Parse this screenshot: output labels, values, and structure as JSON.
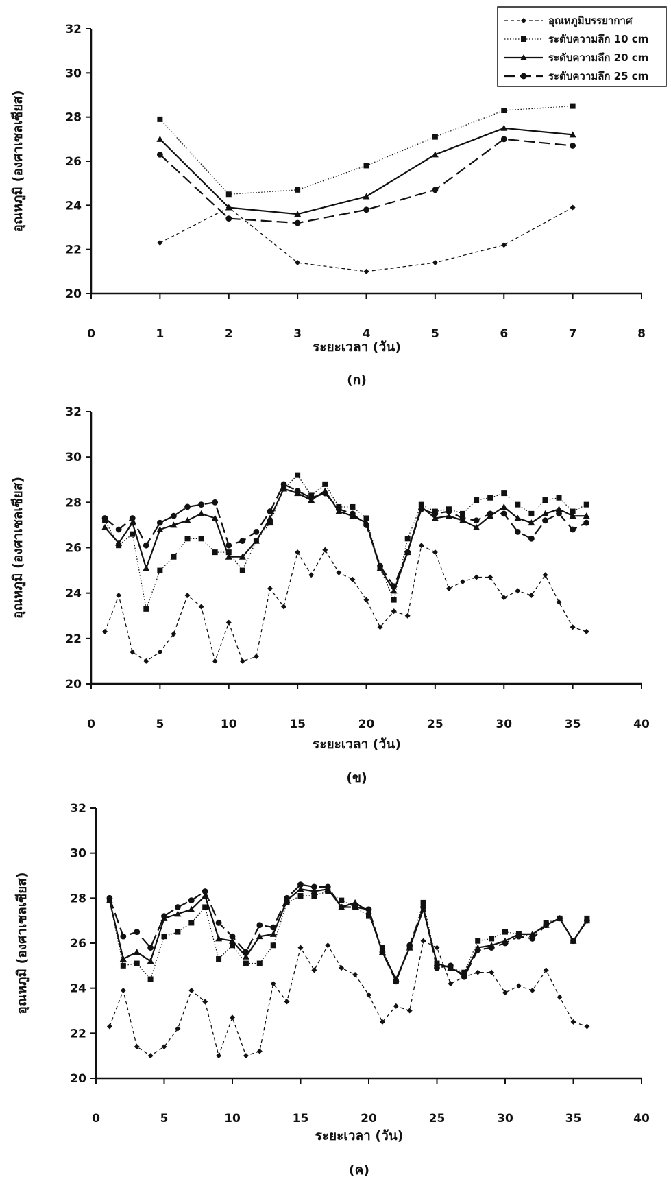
{
  "chart_data": [
    {
      "type": "line",
      "caption": "(ก)",
      "xlabel": "ระยะเวลา (วัน)",
      "ylabel": "อุณหภูมิ (องศาเซลเซียส)",
      "xlim": [
        0,
        8
      ],
      "ylim": [
        20,
        32
      ],
      "xticks": [
        0,
        1,
        2,
        3,
        4,
        5,
        6,
        7,
        8
      ],
      "yticks": [
        20,
        22,
        24,
        26,
        28,
        30,
        32
      ],
      "legend": "top-right",
      "x": [
        1,
        2,
        3,
        4,
        5,
        6,
        7
      ],
      "series": [
        {
          "name": "อุณหภูมิบรรยากาศ",
          "style": "dash-diamond",
          "values": [
            22.3,
            23.9,
            21.4,
            21.0,
            21.4,
            22.2,
            23.9
          ]
        },
        {
          "name": "ระดับความลึก 10 cm",
          "style": "dot-square",
          "values": [
            27.9,
            24.5,
            24.7,
            25.8,
            27.1,
            28.3,
            28.5
          ]
        },
        {
          "name": "ระดับความลึก 20 cm",
          "style": "solid-triangle",
          "values": [
            27.0,
            23.9,
            23.6,
            24.4,
            26.3,
            27.5,
            27.2
          ]
        },
        {
          "name": "ระดับความลึก 25 cm",
          "style": "longdash-circle",
          "values": [
            26.3,
            23.4,
            23.2,
            23.8,
            24.7,
            27.0,
            26.7
          ]
        }
      ]
    },
    {
      "type": "line",
      "caption": "(ข)",
      "xlabel": "ระยะเวลา (วัน)",
      "ylabel": "อุณหภูมิ (องศาเซลเซียส)",
      "xlim": [
        0,
        40
      ],
      "ylim": [
        20,
        32
      ],
      "xticks": [
        0,
        5,
        10,
        15,
        20,
        25,
        30,
        35,
        40
      ],
      "yticks": [
        20,
        22,
        24,
        26,
        28,
        30,
        32
      ],
      "x": [
        1,
        2,
        3,
        4,
        5,
        6,
        7,
        8,
        9,
        10,
        11,
        12,
        13,
        14,
        15,
        16,
        17,
        18,
        19,
        20,
        21,
        22,
        23,
        24,
        25,
        26,
        27,
        28,
        29,
        30,
        31,
        32,
        33,
        34,
        35,
        36
      ],
      "series": [
        {
          "style": "dash-diamond",
          "values": [
            22.3,
            23.9,
            21.4,
            21.0,
            21.4,
            22.2,
            23.9,
            23.4,
            21.0,
            22.7,
            21.0,
            21.2,
            24.2,
            23.4,
            25.8,
            24.8,
            25.9,
            24.9,
            24.6,
            23.7,
            22.5,
            23.2,
            23.0,
            26.1,
            25.8,
            24.2,
            24.5,
            24.7,
            24.7,
            23.8,
            24.1,
            23.9,
            24.8,
            23.6,
            22.5,
            22.3
          ]
        },
        {
          "style": "dot-square",
          "values": [
            27.2,
            26.1,
            26.6,
            23.3,
            25.0,
            25.6,
            26.4,
            26.4,
            25.8,
            25.8,
            25.0,
            26.3,
            27.1,
            28.6,
            29.2,
            28.3,
            28.8,
            27.8,
            27.8,
            27.3,
            25.1,
            23.7,
            26.4,
            27.9,
            27.6,
            27.7,
            27.5,
            28.1,
            28.2,
            28.4,
            27.9,
            27.5,
            28.1,
            28.2,
            27.6,
            27.9
          ]
        },
        {
          "style": "solid-triangle",
          "values": [
            26.9,
            26.2,
            27.1,
            25.1,
            26.8,
            27.0,
            27.2,
            27.5,
            27.3,
            25.6,
            25.6,
            26.3,
            27.3,
            28.6,
            28.4,
            28.1,
            28.5,
            27.6,
            27.4,
            27.1,
            25.1,
            24.1,
            25.8,
            27.8,
            27.3,
            27.4,
            27.2,
            26.9,
            27.4,
            27.8,
            27.3,
            27.1,
            27.5,
            27.7,
            27.4,
            27.4
          ]
        },
        {
          "style": "longdash-circle",
          "values": [
            27.3,
            26.8,
            27.3,
            26.1,
            27.1,
            27.4,
            27.8,
            27.9,
            28.0,
            26.1,
            26.3,
            26.7,
            27.6,
            28.8,
            28.5,
            28.2,
            28.4,
            27.7,
            27.5,
            27.0,
            25.2,
            24.3,
            25.8,
            27.7,
            27.5,
            27.6,
            27.3,
            27.2,
            27.5,
            27.5,
            26.7,
            26.4,
            27.2,
            27.5,
            26.8,
            27.1
          ]
        }
      ]
    },
    {
      "type": "line",
      "caption": "(ค)",
      "xlabel": "ระยะเวลา (วัน)",
      "ylabel": "อุณหภูมิ (องศาเซลเซียส)",
      "xlim": [
        0,
        40
      ],
      "ylim": [
        20,
        32
      ],
      "xticks": [
        0,
        5,
        10,
        15,
        20,
        25,
        30,
        35,
        40
      ],
      "yticks": [
        20,
        22,
        24,
        26,
        28,
        30,
        32
      ],
      "x": [
        1,
        2,
        3,
        4,
        5,
        6,
        7,
        8,
        9,
        10,
        11,
        12,
        13,
        14,
        15,
        16,
        17,
        18,
        19,
        20,
        21,
        22,
        23,
        24,
        25,
        26,
        27,
        28,
        29,
        30,
        31,
        32,
        33,
        34,
        35,
        36
      ],
      "series": [
        {
          "style": "dash-diamond",
          "values": [
            22.3,
            23.9,
            21.4,
            21.0,
            21.4,
            22.2,
            23.9,
            23.4,
            21.0,
            22.7,
            21.0,
            21.2,
            24.2,
            23.4,
            25.8,
            24.8,
            25.9,
            24.9,
            24.6,
            23.7,
            22.5,
            23.2,
            23.0,
            26.1,
            25.8,
            24.2,
            24.5,
            24.7,
            24.7,
            23.8,
            24.1,
            23.9,
            24.8,
            23.6,
            22.5,
            22.3
          ]
        },
        {
          "style": "dot-square",
          "values": [
            27.9,
            25.0,
            25.1,
            24.4,
            26.3,
            26.5,
            26.9,
            27.6,
            25.3,
            25.9,
            25.1,
            25.1,
            25.9,
            27.8,
            28.1,
            28.1,
            28.3,
            27.9,
            27.6,
            27.2,
            25.8,
            24.3,
            25.8,
            27.8,
            25.1,
            24.9,
            24.7,
            26.1,
            26.2,
            26.5,
            26.4,
            26.3,
            26.9,
            27.1,
            26.1,
            27.1
          ]
        },
        {
          "style": "solid-triangle",
          "values": [
            27.9,
            25.3,
            25.6,
            25.2,
            27.1,
            27.3,
            27.5,
            28.1,
            26.2,
            26.1,
            25.4,
            26.3,
            26.4,
            27.9,
            28.4,
            28.3,
            28.4,
            27.6,
            27.8,
            27.4,
            25.6,
            24.4,
            25.8,
            27.5,
            25.1,
            24.9,
            24.6,
            25.8,
            25.9,
            26.1,
            26.4,
            26.4,
            26.8,
            27.1,
            26.1,
            27.0
          ]
        },
        {
          "style": "longdash-circle",
          "values": [
            28.0,
            26.3,
            26.5,
            25.8,
            27.2,
            27.6,
            27.9,
            28.3,
            26.9,
            26.3,
            25.6,
            26.8,
            26.7,
            28.0,
            28.6,
            28.5,
            28.5,
            27.6,
            27.6,
            27.5,
            25.6,
            24.3,
            25.9,
            27.6,
            24.9,
            25.0,
            24.5,
            25.7,
            25.8,
            26.0,
            26.3,
            26.2,
            26.8,
            27.1,
            26.1,
            27.0
          ]
        }
      ]
    }
  ]
}
